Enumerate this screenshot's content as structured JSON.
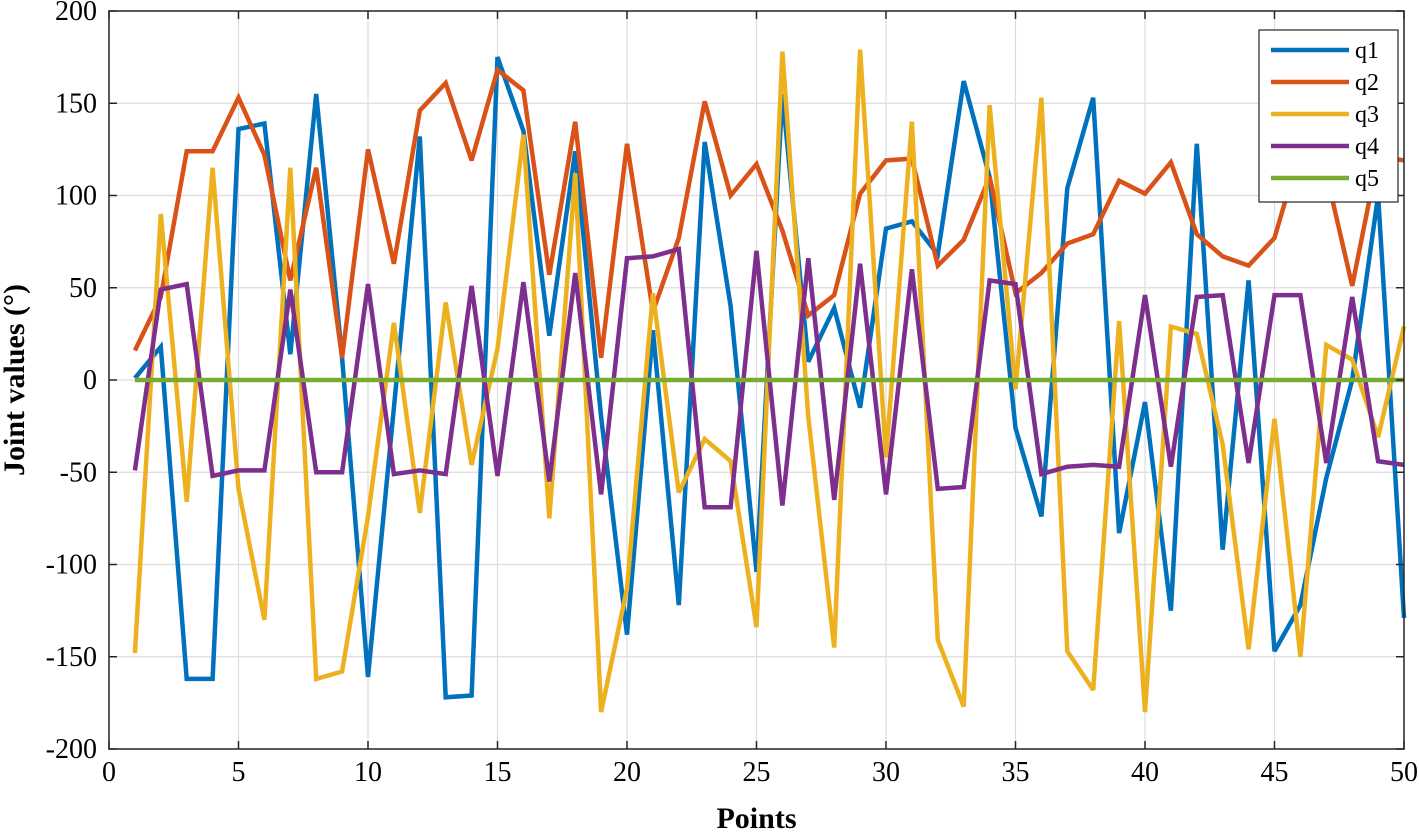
{
  "chart_data": {
    "type": "line",
    "title": "",
    "xlabel": "Points",
    "ylabel": "Joint values (°)",
    "xlim": [
      0,
      50
    ],
    "ylim": [
      -200,
      200
    ],
    "xticks": [
      0,
      5,
      10,
      15,
      20,
      25,
      30,
      35,
      40,
      45,
      50
    ],
    "yticks": [
      -200,
      -150,
      -100,
      -50,
      0,
      50,
      100,
      150,
      200
    ],
    "grid": true,
    "legend_position": "top-right",
    "x": [
      1,
      2,
      3,
      4,
      5,
      6,
      7,
      8,
      9,
      10,
      11,
      12,
      13,
      14,
      15,
      16,
      17,
      18,
      19,
      20,
      21,
      22,
      23,
      24,
      25,
      26,
      27,
      28,
      29,
      30,
      31,
      32,
      33,
      34,
      35,
      36,
      37,
      38,
      39,
      40,
      41,
      42,
      43,
      44,
      45,
      46,
      47,
      48,
      49,
      50
    ],
    "series": [
      {
        "name": "q1",
        "color": "#0072BD",
        "values": [
          1,
          18,
          -162,
          -162,
          136,
          139,
          14,
          155,
          12,
          -161,
          -15,
          132,
          -172,
          -171,
          175,
          135,
          24,
          124,
          -20,
          -138,
          27,
          -122,
          129,
          40,
          -104,
          155,
          10,
          39,
          -15,
          82,
          86,
          68,
          162,
          110,
          -26,
          -74,
          104,
          153,
          -83,
          -12,
          -125,
          128,
          -92,
          54,
          -147,
          -122,
          -53,
          0,
          100,
          -129
        ]
      },
      {
        "name": "q2",
        "color": "#D95319",
        "values": [
          16,
          45,
          124,
          124,
          153,
          122,
          54,
          115,
          12,
          125,
          63,
          146,
          161,
          119,
          168,
          157,
          57,
          140,
          12,
          128,
          37,
          77,
          151,
          100,
          117,
          81,
          35,
          46,
          101,
          119,
          120,
          62,
          76,
          110,
          47,
          58,
          74,
          79,
          108,
          101,
          118,
          79,
          67,
          62,
          77,
          125,
          112,
          51,
          121,
          119
        ]
      },
      {
        "name": "q3",
        "color": "#EDB120",
        "values": [
          -148,
          90,
          -66,
          115,
          -59,
          -130,
          115,
          -162,
          -158,
          -74,
          31,
          -72,
          42,
          -46,
          17,
          133,
          -75,
          112,
          -180,
          -113,
          47,
          -61,
          -32,
          -44,
          -134,
          178,
          -20,
          -145,
          179,
          -42,
          140,
          -141,
          -177,
          149,
          -5,
          153,
          -147,
          -168,
          32,
          -180,
          29,
          25,
          -35,
          -146,
          -21,
          -150,
          19,
          11,
          -31,
          29
        ]
      },
      {
        "name": "q4",
        "color": "#7E2F8E",
        "values": [
          -49,
          49,
          52,
          -52,
          -49,
          -49,
          49,
          -50,
          -50,
          52,
          -51,
          -49,
          -51,
          51,
          -52,
          53,
          -55,
          58,
          -62,
          66,
          67,
          71,
          -69,
          -69,
          70,
          -68,
          66,
          -65,
          63,
          -62,
          60,
          -59,
          -58,
          54,
          52,
          -51,
          -47,
          -46,
          -47,
          46,
          -47,
          45,
          46,
          -45,
          46,
          46,
          -45,
          45,
          -44,
          -46
        ]
      },
      {
        "name": "q5",
        "color": "#77AC30",
        "values": [
          0,
          0,
          0,
          0,
          0,
          0,
          0,
          0,
          0,
          0,
          0,
          0,
          0,
          0,
          0,
          0,
          0,
          0,
          0,
          0,
          0,
          0,
          0,
          0,
          0,
          0,
          0,
          0,
          0,
          0,
          0,
          0,
          0,
          0,
          0,
          0,
          0,
          0,
          0,
          0,
          0,
          0,
          0,
          0,
          0,
          0,
          0,
          0,
          0,
          0
        ]
      }
    ]
  }
}
